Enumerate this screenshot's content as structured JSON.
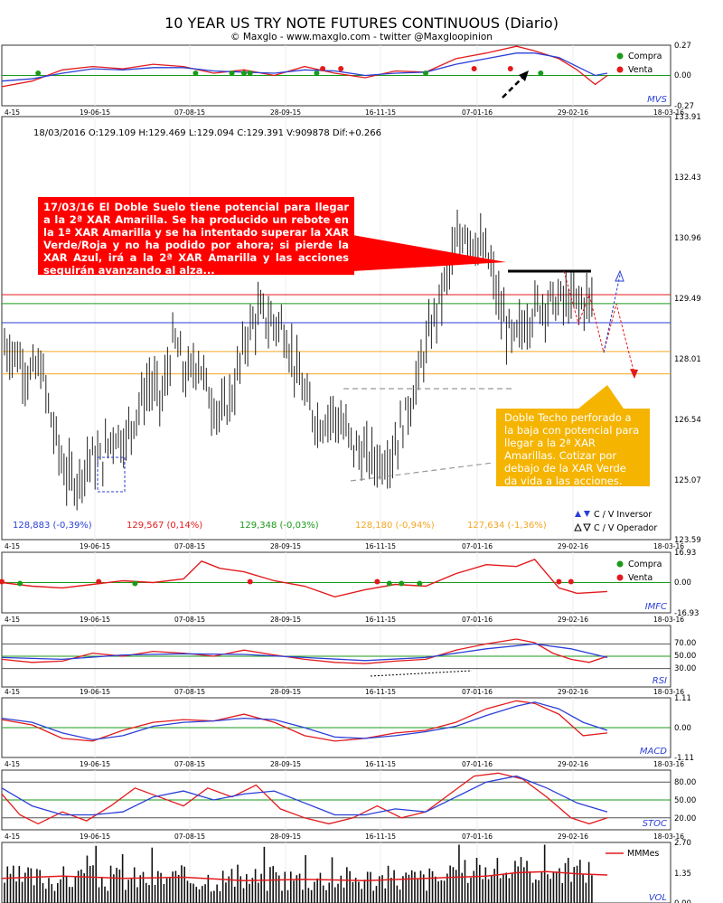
{
  "header": {
    "title": "10 YEAR US TRY NOTE FUTURES CONTINUOUS (Diario)",
    "subtitle": "© Maxglo - www.maxglo.com - twitter @Maxgloopinion"
  },
  "x_dates": [
    "4-15",
    "19-06-15",
    "07-08-15",
    "28-09-15",
    "16-11-15",
    "07-01-16",
    "29-02-16",
    "18-03-16"
  ],
  "annotations": {
    "red_text": "17/03/16  El Doble Suelo tiene potencial para llegar a la 2ª XAR Amarilla. Se ha producido un rebote en la 1ª XAR Amarilla y se ha intentado superar la XAR Verde/Roja y no ha podido por ahora;  si pierde la XAR Azul, irá a la 2ª XAR Amarilla y las acciones seguirán avanzando al alza...",
    "yellow_text": "Doble Techo perforado a la baja con potencial para llegar a la 2ª XAR Amarillas. Cotizar por debajo de la XAR Verde da vida a las acciones."
  },
  "legend": {
    "compra": "Compra",
    "venta": "Venta",
    "inversor": "C / V Inversor",
    "operador": "C / V Operador",
    "mmmes": "MMMes"
  },
  "colors": {
    "red": "#e31a1c",
    "green": "#1a9a1a",
    "blue": "#2a3fd6",
    "orange": "#f5a623",
    "yellow_box": "#f5b400",
    "red_box": "#ff0000"
  },
  "chart_data": [
    {
      "type": "line",
      "panel": "MVS",
      "label": "MVS",
      "y_ticks": [
        "0.27",
        "0.00",
        "-0.27"
      ],
      "ylim": [
        -0.27,
        0.27
      ],
      "series": [
        {
          "color": "#e31a1c",
          "x_pos": [
            0,
            0.05,
            0.1,
            0.15,
            0.2,
            0.25,
            0.3,
            0.35,
            0.4,
            0.45,
            0.5,
            0.55,
            0.6,
            0.65,
            0.7,
            0.75,
            0.8,
            0.85,
            0.88,
            0.92,
            0.95,
            0.98,
            1.0
          ],
          "values": [
            -0.1,
            -0.05,
            0.05,
            0.08,
            0.06,
            0.1,
            0.08,
            0.02,
            0.05,
            0.0,
            0.08,
            0.02,
            -0.02,
            0.04,
            0.03,
            0.15,
            0.2,
            0.26,
            0.22,
            0.15,
            0.05,
            -0.08,
            0.0
          ]
        },
        {
          "color": "#2a3fd6",
          "x_pos": [
            0,
            0.05,
            0.1,
            0.15,
            0.2,
            0.25,
            0.3,
            0.35,
            0.4,
            0.45,
            0.5,
            0.55,
            0.6,
            0.65,
            0.7,
            0.75,
            0.8,
            0.85,
            0.88,
            0.92,
            0.95,
            0.98,
            1.0
          ],
          "values": [
            -0.05,
            -0.03,
            0.02,
            0.06,
            0.05,
            0.07,
            0.07,
            0.04,
            0.03,
            0.02,
            0.05,
            0.04,
            0.0,
            0.02,
            0.03,
            0.1,
            0.15,
            0.2,
            0.2,
            0.16,
            0.08,
            0.0,
            0.02
          ]
        }
      ]
    },
    {
      "type": "candlestick",
      "panel": "Price",
      "info_line": "18/03/2016  O:129.109  H:129.469  L:129.094  C:129.391  V:909878  Dif:+0.266",
      "y_ticks": [
        "133.91",
        "132.43",
        "130.96",
        "129.49",
        "128.01",
        "126.54",
        "125.07",
        "123.59"
      ],
      "ylim": [
        123.59,
        133.91
      ],
      "close_path": {
        "x_pos": [
          0,
          0.02,
          0.04,
          0.06,
          0.08,
          0.1,
          0.12,
          0.14,
          0.16,
          0.18,
          0.2,
          0.22,
          0.24,
          0.26,
          0.28,
          0.3,
          0.32,
          0.34,
          0.36,
          0.38,
          0.4,
          0.42,
          0.44,
          0.46,
          0.48,
          0.5,
          0.52,
          0.54,
          0.56,
          0.58,
          0.6,
          0.62,
          0.64,
          0.66,
          0.68,
          0.7,
          0.72,
          0.74,
          0.76,
          0.78,
          0.8,
          0.82,
          0.84,
          0.86,
          0.88,
          0.9,
          0.92,
          0.94,
          0.96,
          0.98,
          1.0
        ],
        "values": [
          128.3,
          128.1,
          127.6,
          127.8,
          126.3,
          125.2,
          125.0,
          125.6,
          125.5,
          126.2,
          126.0,
          126.8,
          127.4,
          127.0,
          128.5,
          127.5,
          128.0,
          127.0,
          126.6,
          127.3,
          128.6,
          129.1,
          128.9,
          128.8,
          127.8,
          126.9,
          126.4,
          126.7,
          126.3,
          125.8,
          125.6,
          125.5,
          125.7,
          126.5,
          127.4,
          128.5,
          129.5,
          130.5,
          131.2,
          130.8,
          130.4,
          129.1,
          128.4,
          128.9,
          129.3,
          129.4,
          129.4,
          129.4,
          129.4,
          129.4,
          129.4
        ]
      },
      "xar_lines": [
        {
          "name": "roja",
          "color": "#e31a1c",
          "value": 129.567,
          "label": "129,567 (0,14%)"
        },
        {
          "name": "verde",
          "color": "#1a9a1a",
          "value": 129.348,
          "label": "129,348 (-0,03%)"
        },
        {
          "name": "azul",
          "color": "#2a3fd6",
          "value": 128.883,
          "label": "128,883 (-0,39%)"
        },
        {
          "name": "amarilla-1",
          "color": "#f5a623",
          "value": 128.18,
          "label": "128,180 (-0,94%)"
        },
        {
          "name": "amarilla-2",
          "color": "#f5a623",
          "value": 127.634,
          "label": "127,634 (-1,36%)"
        }
      ]
    },
    {
      "type": "line",
      "panel": "IMFC",
      "label": "IMFC",
      "y_ticks": [
        "16.93",
        "0.00",
        "-16.93"
      ],
      "ylim": [
        -16.93,
        16.93
      ],
      "series": [
        {
          "color": "#e31a1c",
          "x_pos": [
            0,
            0.05,
            0.1,
            0.15,
            0.2,
            0.25,
            0.3,
            0.33,
            0.36,
            0.4,
            0.45,
            0.5,
            0.55,
            0.6,
            0.65,
            0.7,
            0.75,
            0.8,
            0.85,
            0.88,
            0.92,
            0.95,
            1.0
          ],
          "values": [
            0.0,
            -2.0,
            -3.0,
            -1.0,
            1.0,
            0.0,
            2.0,
            12.0,
            8.0,
            6.0,
            1.0,
            -2.0,
            -8.0,
            -4.0,
            -1.0,
            -2.0,
            5.0,
            10.0,
            9.0,
            13.0,
            -3.0,
            -6.0,
            -5.0
          ]
        }
      ]
    },
    {
      "type": "line",
      "panel": "RSI",
      "label": "RSI",
      "y_ticks": [
        "70.00",
        "50.00",
        "30.00"
      ],
      "ylim": [
        0,
        100
      ],
      "series": [
        {
          "color": "#e31a1c",
          "x_pos": [
            0,
            0.05,
            0.1,
            0.15,
            0.2,
            0.25,
            0.3,
            0.35,
            0.4,
            0.45,
            0.5,
            0.55,
            0.6,
            0.65,
            0.7,
            0.75,
            0.8,
            0.85,
            0.88,
            0.91,
            0.94,
            0.97,
            1.0
          ],
          "values": [
            45,
            40,
            42,
            55,
            50,
            58,
            55,
            50,
            60,
            52,
            45,
            40,
            38,
            42,
            45,
            60,
            70,
            78,
            72,
            55,
            45,
            40,
            50
          ]
        },
        {
          "color": "#2a3fd6",
          "x_pos": [
            0,
            0.1,
            0.2,
            0.3,
            0.4,
            0.5,
            0.6,
            0.7,
            0.8,
            0.88,
            0.94,
            1.0
          ],
          "values": [
            48,
            45,
            52,
            54,
            53,
            48,
            43,
            48,
            62,
            70,
            62,
            48
          ]
        }
      ]
    },
    {
      "type": "line",
      "panel": "MACD",
      "label": "MACD",
      "y_ticks": [
        "1.11",
        "0.00",
        "-1.11"
      ],
      "ylim": [
        -1.11,
        1.11
      ],
      "series": [
        {
          "color": "#e31a1c",
          "x_pos": [
            0,
            0.05,
            0.1,
            0.15,
            0.2,
            0.25,
            0.3,
            0.35,
            0.4,
            0.45,
            0.5,
            0.55,
            0.6,
            0.65,
            0.7,
            0.75,
            0.8,
            0.85,
            0.88,
            0.92,
            0.96,
            1.0
          ],
          "values": [
            0.3,
            0.1,
            -0.4,
            -0.5,
            -0.1,
            0.2,
            0.3,
            0.25,
            0.5,
            0.2,
            -0.3,
            -0.5,
            -0.4,
            -0.2,
            -0.1,
            0.2,
            0.7,
            1.0,
            0.9,
            0.5,
            -0.3,
            -0.2
          ]
        },
        {
          "color": "#2a3fd6",
          "x_pos": [
            0,
            0.05,
            0.1,
            0.15,
            0.2,
            0.25,
            0.3,
            0.35,
            0.4,
            0.45,
            0.5,
            0.55,
            0.6,
            0.65,
            0.7,
            0.75,
            0.8,
            0.85,
            0.88,
            0.92,
            0.96,
            1.0
          ],
          "values": [
            0.35,
            0.2,
            -0.2,
            -0.45,
            -0.3,
            0.05,
            0.2,
            0.25,
            0.35,
            0.3,
            0.0,
            -0.35,
            -0.4,
            -0.3,
            -0.15,
            0.05,
            0.45,
            0.8,
            0.95,
            0.7,
            0.2,
            -0.1
          ]
        }
      ]
    },
    {
      "type": "line",
      "panel": "STOC",
      "label": "STOC",
      "y_ticks": [
        "80.00",
        "50.00",
        "20.00"
      ],
      "ylim": [
        0,
        100
      ],
      "series": [
        {
          "color": "#e31a1c",
          "x_pos": [
            0,
            0.03,
            0.06,
            0.1,
            0.14,
            0.18,
            0.22,
            0.26,
            0.3,
            0.34,
            0.38,
            0.42,
            0.46,
            0.5,
            0.54,
            0.58,
            0.62,
            0.66,
            0.7,
            0.74,
            0.78,
            0.82,
            0.86,
            0.9,
            0.94,
            0.97,
            1.0
          ],
          "values": [
            60,
            25,
            10,
            30,
            15,
            40,
            70,
            55,
            40,
            70,
            55,
            75,
            35,
            20,
            10,
            20,
            40,
            20,
            30,
            60,
            90,
            95,
            85,
            55,
            20,
            10,
            20
          ]
        },
        {
          "color": "#2a3fd6",
          "x_pos": [
            0,
            0.05,
            0.1,
            0.15,
            0.2,
            0.25,
            0.3,
            0.35,
            0.4,
            0.45,
            0.5,
            0.55,
            0.6,
            0.65,
            0.7,
            0.75,
            0.8,
            0.85,
            0.9,
            0.95,
            1.0
          ],
          "values": [
            70,
            40,
            25,
            25,
            30,
            55,
            65,
            50,
            60,
            65,
            45,
            25,
            25,
            35,
            30,
            55,
            80,
            90,
            70,
            45,
            30
          ]
        }
      ]
    },
    {
      "type": "bar",
      "panel": "VOL",
      "label": "VOL",
      "y_ticks": [
        "2.70",
        "1.35",
        "0.00"
      ],
      "ylim": [
        0,
        2.7
      ],
      "mmmes": {
        "color": "#e31a1c",
        "x_pos": [
          0,
          0.1,
          0.2,
          0.3,
          0.4,
          0.5,
          0.6,
          0.7,
          0.8,
          0.85,
          0.9,
          0.95,
          1.0
        ],
        "values": [
          1.1,
          1.2,
          1.1,
          1.15,
          1.0,
          1.05,
          1.0,
          1.1,
          1.2,
          1.35,
          1.4,
          1.3,
          1.25
        ]
      }
    }
  ]
}
